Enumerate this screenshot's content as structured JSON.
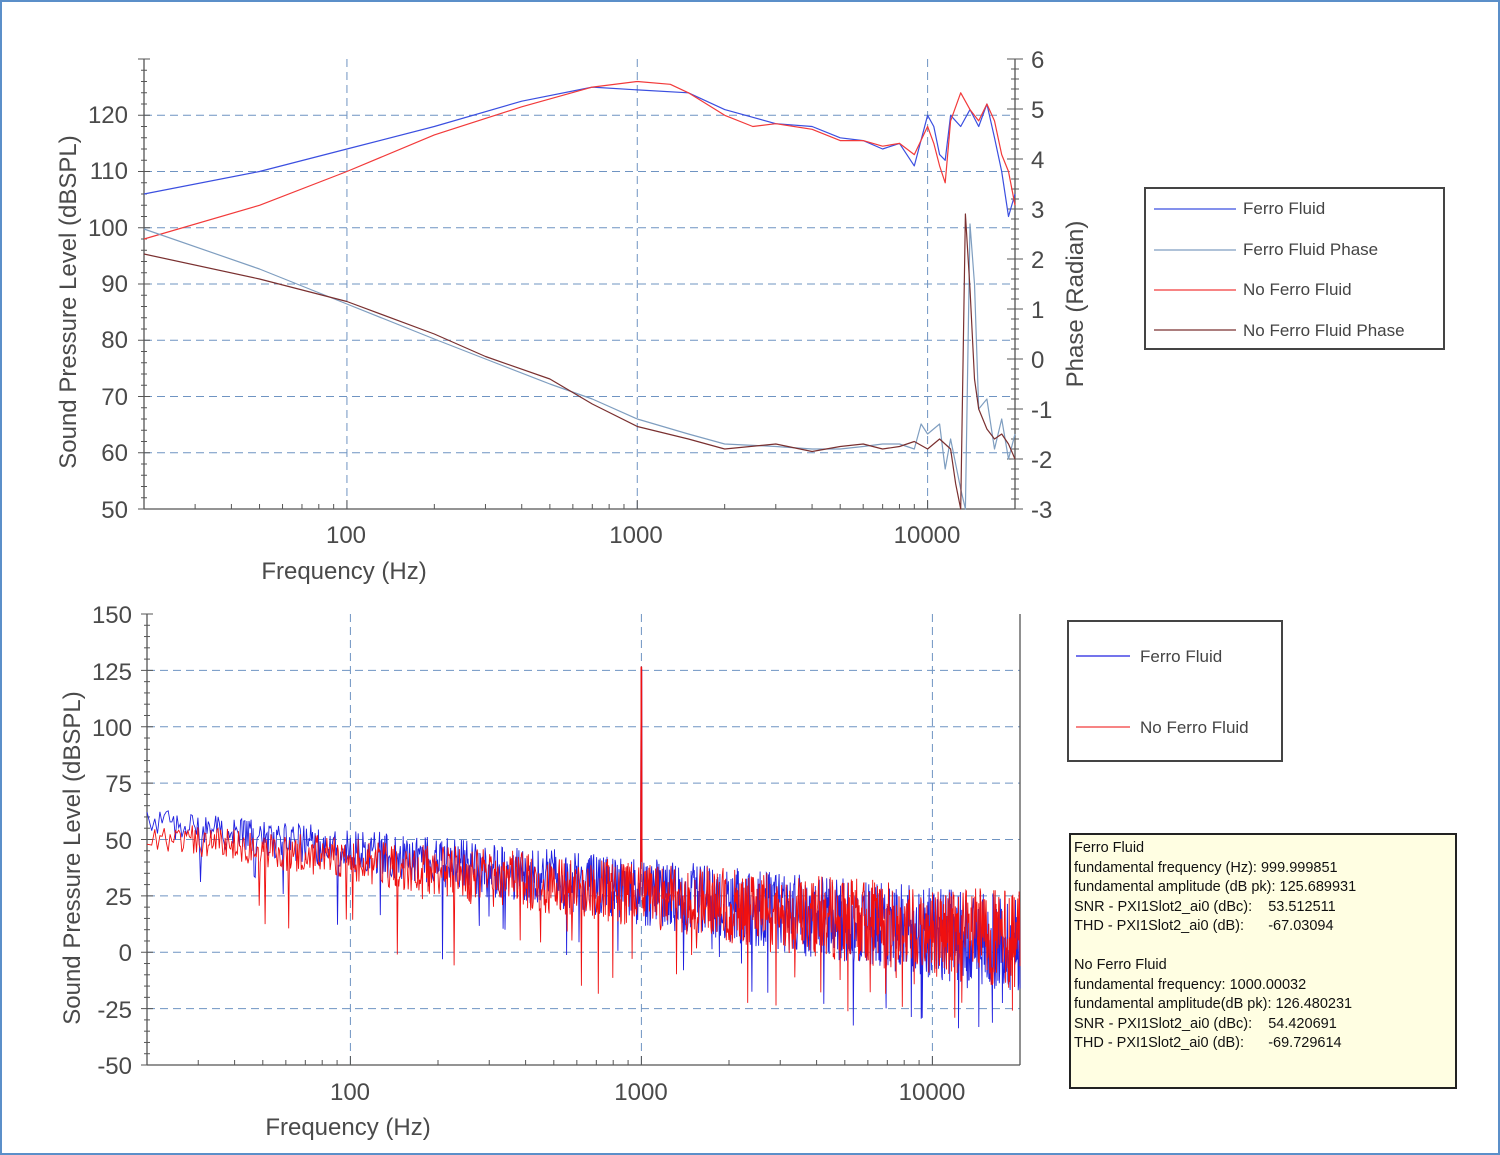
{
  "colors": {
    "ferro": "#3b4fe0",
    "ferro_phase": "#7f9ec0",
    "no_ferro": "#f23a3a",
    "no_ferro_phase": "#7a3030",
    "spectrum_ferro": "#2020e0",
    "spectrum_no_ferro": "#f01010",
    "grid": "#6f94c2",
    "frame": "#5b8fc9"
  },
  "chart_data": [
    {
      "type": "line",
      "xlabel": "Frequency (Hz)",
      "ylabel": "Sound Pressure Level (dBSPL)",
      "y2label": "Phase (Radian)",
      "x_scale": "log",
      "xlim": [
        20,
        20000
      ],
      "ylim": [
        50,
        130
      ],
      "y2lim": [
        -3,
        6
      ],
      "x_ticks": [
        "100",
        "1000",
        "10000"
      ],
      "y_ticks": [
        "50",
        "60",
        "70",
        "80",
        "90",
        "100",
        "110",
        "120"
      ],
      "y2_ticks": [
        "-3",
        "-2",
        "-1",
        "0",
        "1",
        "2",
        "3",
        "4",
        "5",
        "6"
      ],
      "grid": true,
      "legend_position": "right",
      "legend": [
        "Ferro Fluid",
        "Ferro Fluid Phase",
        "No Ferro Fluid",
        "No Ferro Fluid Phase"
      ],
      "series": [
        {
          "name": "Ferro Fluid",
          "axis": "left",
          "color_key": "ferro",
          "x": [
            20,
            50,
            100,
            200,
            400,
            700,
            1000,
            1500,
            2000,
            3000,
            4000,
            5000,
            6000,
            7000,
            8000,
            9000,
            10000,
            10500,
            11000,
            11500,
            12000,
            13000,
            14000,
            15000,
            16000,
            17000,
            18000,
            19000,
            20000
          ],
          "y": [
            106,
            110,
            114,
            118,
            122.5,
            125,
            124.5,
            124,
            121,
            118.5,
            118,
            116,
            115.5,
            114,
            115,
            111,
            120,
            118,
            113,
            112,
            120,
            118,
            121,
            118,
            122,
            116,
            110,
            102,
            106
          ]
        },
        {
          "name": "No Ferro Fluid",
          "axis": "left",
          "color_key": "no_ferro",
          "x": [
            20,
            50,
            100,
            200,
            400,
            700,
            1000,
            1300,
            1500,
            2000,
            2500,
            3000,
            4000,
            5000,
            6000,
            7000,
            8000,
            9000,
            10000,
            10500,
            11000,
            11500,
            12000,
            13000,
            14000,
            15000,
            16000,
            17000,
            18000,
            19000,
            20000
          ],
          "y": [
            98,
            104,
            110,
            116.5,
            121.5,
            125,
            126,
            125.5,
            124,
            120,
            118,
            118.5,
            117.5,
            115.5,
            115.5,
            114.5,
            115,
            113,
            118,
            115,
            111,
            108,
            119,
            124,
            121,
            119,
            122,
            119,
            113,
            110,
            104
          ]
        },
        {
          "name": "Ferro Fluid Phase",
          "axis": "right",
          "color_key": "ferro_phase",
          "x": [
            20,
            50,
            100,
            200,
            300,
            500,
            700,
            1000,
            1500,
            2000,
            3000,
            4000,
            5000,
            6000,
            7000,
            8000,
            9000,
            9500,
            10000,
            11000,
            11500,
            12000,
            13000,
            13500,
            14000,
            14500,
            15000,
            16000,
            17000,
            18000,
            19000,
            20000
          ],
          "y": [
            2.6,
            1.8,
            1.1,
            0.4,
            0.0,
            -0.5,
            -0.8,
            -1.2,
            -1.5,
            -1.7,
            -1.75,
            -1.8,
            -1.8,
            -1.75,
            -1.7,
            -1.7,
            -1.8,
            -1.3,
            -1.5,
            -1.3,
            -2.2,
            -1.6,
            -2.6,
            -3.0,
            2.7,
            1.5,
            -1.0,
            -0.8,
            -1.8,
            -1.2,
            -2.0,
            -1.5
          ]
        },
        {
          "name": "No Ferro Fluid Phase",
          "axis": "right",
          "color_key": "no_ferro_phase",
          "x": [
            20,
            50,
            100,
            200,
            300,
            500,
            700,
            1000,
            1500,
            2000,
            3000,
            4000,
            5000,
            6000,
            7000,
            8000,
            9000,
            10000,
            11000,
            12000,
            12500,
            13000,
            13500,
            14000,
            14500,
            15000,
            16000,
            17000,
            18000,
            19000,
            20000
          ],
          "y": [
            2.1,
            1.6,
            1.15,
            0.5,
            0.05,
            -0.4,
            -0.9,
            -1.35,
            -1.6,
            -1.8,
            -1.7,
            -1.85,
            -1.75,
            -1.7,
            -1.8,
            -1.75,
            -1.65,
            -1.8,
            -1.6,
            -1.8,
            -2.5,
            -3.0,
            2.9,
            1.4,
            -0.4,
            -1.0,
            -1.4,
            -1.6,
            -1.5,
            -1.7,
            -2.0
          ]
        }
      ]
    },
    {
      "type": "line",
      "xlabel": "Frequency (Hz)",
      "ylabel": "Sound Pressure Level (dBSPL)",
      "x_scale": "log",
      "xlim": [
        20,
        20000
      ],
      "ylim": [
        -50,
        150
      ],
      "x_ticks": [
        "100",
        "1000",
        "10000"
      ],
      "y_ticks": [
        "-50",
        "-25",
        "0",
        "25",
        "50",
        "75",
        "100",
        "125",
        "150"
      ],
      "grid": true,
      "legend_position": "right",
      "legend": [
        "Ferro Fluid",
        "No Ferro Fluid"
      ],
      "series": [
        {
          "name": "Ferro Fluid",
          "color_key": "spectrum_ferro",
          "peak_freq": 1000,
          "peak_level": 125.69,
          "noise_start": 58,
          "noise_end": 3
        },
        {
          "name": "No Ferro Fluid",
          "color_key": "spectrum_no_ferro",
          "peak_freq": 1000,
          "peak_level": 126.48,
          "noise_start": 52,
          "noise_end": 5
        }
      ]
    }
  ],
  "stats": {
    "ferro": {
      "title": "Ferro Fluid",
      "line1": "fundamental frequency (Hz): 999.999851",
      "line2": "fundamental amplitude (dB pk): 125.689931",
      "line3": "SNR - PXI1Slot2_ai0 (dBc):    53.512511",
      "line4": "THD - PXI1Slot2_ai0 (dB):      -67.03094"
    },
    "no_ferro": {
      "title": "No Ferro Fluid",
      "line1": "fundamental frequency: 1000.00032",
      "line2": "fundamental amplitude(dB pk): 126.480231",
      "line3": "SNR - PXI1Slot2_ai0 (dBc):    54.420691",
      "line4": "THD - PXI1Slot2_ai0 (dB):      -69.729614"
    }
  }
}
